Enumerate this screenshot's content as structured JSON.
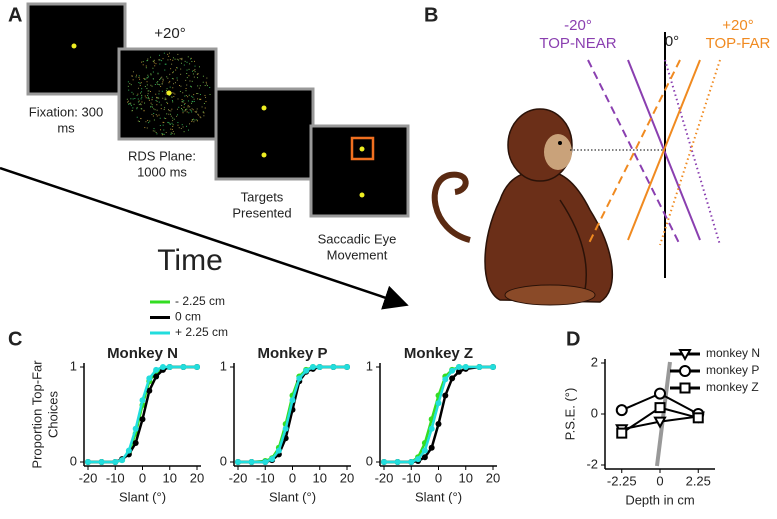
{
  "panel_a": {
    "label": "A",
    "screens": [
      {
        "label": [
          "Fixation: 300",
          "ms"
        ]
      },
      {
        "label": [
          "RDS Plane:",
          "1000 ms"
        ]
      },
      {
        "label": [
          "Targets",
          "Presented"
        ]
      },
      {
        "label": [
          "Saccadic Eye",
          "Movement"
        ]
      }
    ],
    "rds_angle": "+20°",
    "time_label": "Time"
  },
  "panel_b": {
    "label": "B",
    "left": [
      "-20°",
      "TOP-NEAR"
    ],
    "center": "0°",
    "right": [
      "+20°",
      "TOP-FAR"
    ]
  },
  "panel_c": {
    "label": "C"
  },
  "panel_d": {
    "label": "D"
  },
  "chart_data": [
    {
      "type": "line",
      "title": "Monkey N",
      "xlabel": "Slant (°)",
      "ylabel": [
        "Proportion Top-Far",
        "Choices"
      ],
      "legend": "top",
      "x": [
        -20,
        -15,
        -10,
        -7.5,
        -5,
        -2.5,
        0,
        2.5,
        5,
        7.5,
        10,
        15,
        20
      ],
      "xlim": [
        -20,
        20
      ],
      "ylim": [
        0,
        1
      ],
      "xticks": [
        -20,
        -10,
        0,
        10,
        20
      ],
      "yticks": [
        0,
        1
      ],
      "series": [
        {
          "name": "- 2.25 cm",
          "color": "#33dd22",
          "values": [
            0,
            0,
            0,
            0.02,
            0.1,
            0.3,
            0.6,
            0.85,
            0.95,
            0.98,
            1,
            1,
            1
          ]
        },
        {
          "name": "0 cm",
          "color": "#000000",
          "values": [
            0,
            0,
            0,
            0.03,
            0.08,
            0.2,
            0.45,
            0.75,
            0.9,
            0.97,
            1,
            1,
            1
          ]
        },
        {
          "name": "+ 2.25 cm",
          "color": "#22dddd",
          "values": [
            0,
            0,
            0,
            0.02,
            0.12,
            0.35,
            0.65,
            0.88,
            0.97,
            1,
            1,
            1,
            1
          ]
        }
      ]
    },
    {
      "type": "line",
      "title": "Monkey P",
      "xlabel": "Slant (°)",
      "x": [
        -20,
        -15,
        -10,
        -7.5,
        -5,
        -2.5,
        0,
        2.5,
        5,
        7.5,
        10,
        15,
        20
      ],
      "xlim": [
        -20,
        20
      ],
      "ylim": [
        0,
        1
      ],
      "xticks": [
        -20,
        -10,
        0,
        10,
        20
      ],
      "yticks": [
        0,
        1
      ],
      "series": [
        {
          "color": "#33dd22",
          "values": [
            0,
            0,
            0.01,
            0.04,
            0.15,
            0.4,
            0.7,
            0.9,
            0.97,
            1,
            1,
            1,
            1
          ]
        },
        {
          "color": "#000000",
          "values": [
            0,
            0,
            0,
            0.02,
            0.08,
            0.25,
            0.55,
            0.85,
            0.95,
            0.98,
            1,
            1,
            1
          ]
        },
        {
          "color": "#22dddd",
          "values": [
            0,
            0,
            0,
            0.03,
            0.12,
            0.35,
            0.65,
            0.88,
            0.96,
            1,
            1,
            1,
            1
          ]
        }
      ]
    },
    {
      "type": "line",
      "title": "Monkey Z",
      "xlabel": "Slant (°)",
      "x": [
        -20,
        -15,
        -10,
        -7.5,
        -5,
        -2.5,
        0,
        2.5,
        5,
        7.5,
        10,
        15,
        20
      ],
      "xlim": [
        -20,
        20
      ],
      "ylim": [
        0,
        1
      ],
      "xticks": [
        -20,
        -10,
        0,
        10,
        20
      ],
      "yticks": [
        0,
        1
      ],
      "series": [
        {
          "color": "#33dd22",
          "values": [
            0,
            0,
            0,
            0.05,
            0.2,
            0.45,
            0.7,
            0.9,
            0.97,
            1,
            1,
            1,
            1
          ]
        },
        {
          "color": "#000000",
          "values": [
            0,
            0,
            0,
            0.01,
            0.05,
            0.15,
            0.4,
            0.7,
            0.88,
            0.95,
            0.98,
            1,
            1
          ]
        },
        {
          "color": "#22dddd",
          "values": [
            0,
            0,
            0,
            0.03,
            0.12,
            0.35,
            0.62,
            0.87,
            0.96,
            1,
            1,
            1,
            1
          ]
        }
      ]
    },
    {
      "type": "line",
      "xlabel": "Depth in cm",
      "ylabel": [
        "P.S.E. (°)"
      ],
      "legend": "upper right",
      "x": [
        -2.25,
        0,
        2.25
      ],
      "xlim": [
        -3,
        3
      ],
      "ylim": [
        -2,
        2
      ],
      "xticks": [
        -2.25,
        0,
        2.25
      ],
      "yticks": [
        -2,
        0,
        2
      ],
      "series": [
        {
          "name": "monkey N",
          "color": "#000000",
          "marker": "triangle",
          "values": [
            -0.6,
            -0.3,
            -0.1
          ]
        },
        {
          "name": "monkey P",
          "color": "#000000",
          "marker": "circle",
          "values": [
            0.15,
            0.8,
            0.0
          ]
        },
        {
          "name": "monkey Z",
          "color": "#000000",
          "marker": "square",
          "values": [
            -0.75,
            0.25,
            -0.15
          ]
        }
      ]
    }
  ]
}
